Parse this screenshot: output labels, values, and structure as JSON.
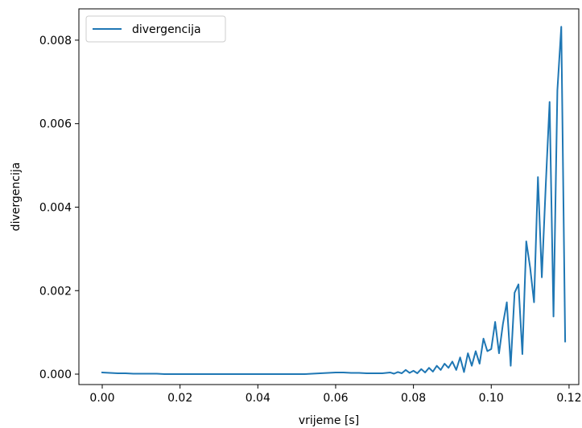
{
  "chart_data": {
    "type": "line",
    "xlabel": "vrijeme [s]",
    "ylabel": "divergencija",
    "xlim": [
      -0.006,
      0.1225
    ],
    "ylim": [
      -0.00025,
      0.00875
    ],
    "xticks": [
      0.0,
      0.02,
      0.04,
      0.06,
      0.08,
      0.1,
      0.12
    ],
    "xtick_labels": [
      "0.00",
      "0.02",
      "0.04",
      "0.06",
      "0.08",
      "0.10",
      "0.12"
    ],
    "yticks": [
      0.0,
      0.002,
      0.004,
      0.006,
      0.008
    ],
    "ytick_labels": [
      "0.000",
      "0.002",
      "0.004",
      "0.006",
      "0.008"
    ],
    "grid": false,
    "legend_position": "top-left",
    "series": [
      {
        "name": "divergencija",
        "color": "#1f77b4",
        "x": [
          0.0,
          0.002,
          0.004,
          0.006,
          0.008,
          0.01,
          0.012,
          0.014,
          0.016,
          0.018,
          0.02,
          0.022,
          0.024,
          0.026,
          0.028,
          0.03,
          0.032,
          0.034,
          0.036,
          0.038,
          0.04,
          0.042,
          0.044,
          0.046,
          0.048,
          0.05,
          0.052,
          0.054,
          0.056,
          0.058,
          0.06,
          0.062,
          0.064,
          0.066,
          0.068,
          0.07,
          0.072,
          0.074,
          0.075,
          0.076,
          0.077,
          0.078,
          0.079,
          0.08,
          0.081,
          0.082,
          0.083,
          0.084,
          0.085,
          0.086,
          0.087,
          0.088,
          0.089,
          0.09,
          0.091,
          0.092,
          0.093,
          0.094,
          0.095,
          0.096,
          0.097,
          0.098,
          0.099,
          0.1,
          0.101,
          0.102,
          0.103,
          0.104,
          0.105,
          0.106,
          0.107,
          0.108,
          0.109,
          0.11,
          0.111,
          0.112,
          0.113,
          0.114,
          0.115,
          0.116,
          0.117,
          0.118,
          0.119
        ],
        "y": [
          4e-05,
          3e-05,
          2e-05,
          2e-05,
          1e-05,
          1e-05,
          1e-05,
          1e-05,
          0.0,
          0.0,
          0.0,
          0.0,
          0.0,
          0.0,
          0.0,
          0.0,
          0.0,
          0.0,
          0.0,
          0.0,
          0.0,
          0.0,
          0.0,
          0.0,
          0.0,
          0.0,
          0.0,
          1e-05,
          2e-05,
          3e-05,
          4e-05,
          4e-05,
          3e-05,
          3e-05,
          2e-05,
          2e-05,
          2e-05,
          4e-05,
          1e-05,
          5e-05,
          2e-05,
          0.0001,
          3e-05,
          8e-05,
          2e-05,
          0.00012,
          4e-05,
          0.00015,
          6e-05,
          0.0002,
          0.0001,
          0.00025,
          0.00015,
          0.0003,
          0.0001,
          0.0004,
          5e-05,
          0.0005,
          0.0002,
          0.00055,
          0.00025,
          0.00085,
          0.00055,
          0.0006,
          0.00125,
          0.0005,
          0.0012,
          0.00172,
          0.0002,
          0.00195,
          0.00215,
          0.00048,
          0.00318,
          0.00255,
          0.00172,
          0.00472,
          0.00232,
          0.0045,
          0.00652,
          0.00138,
          0.0068,
          0.00832,
          0.00078
        ]
      }
    ]
  }
}
